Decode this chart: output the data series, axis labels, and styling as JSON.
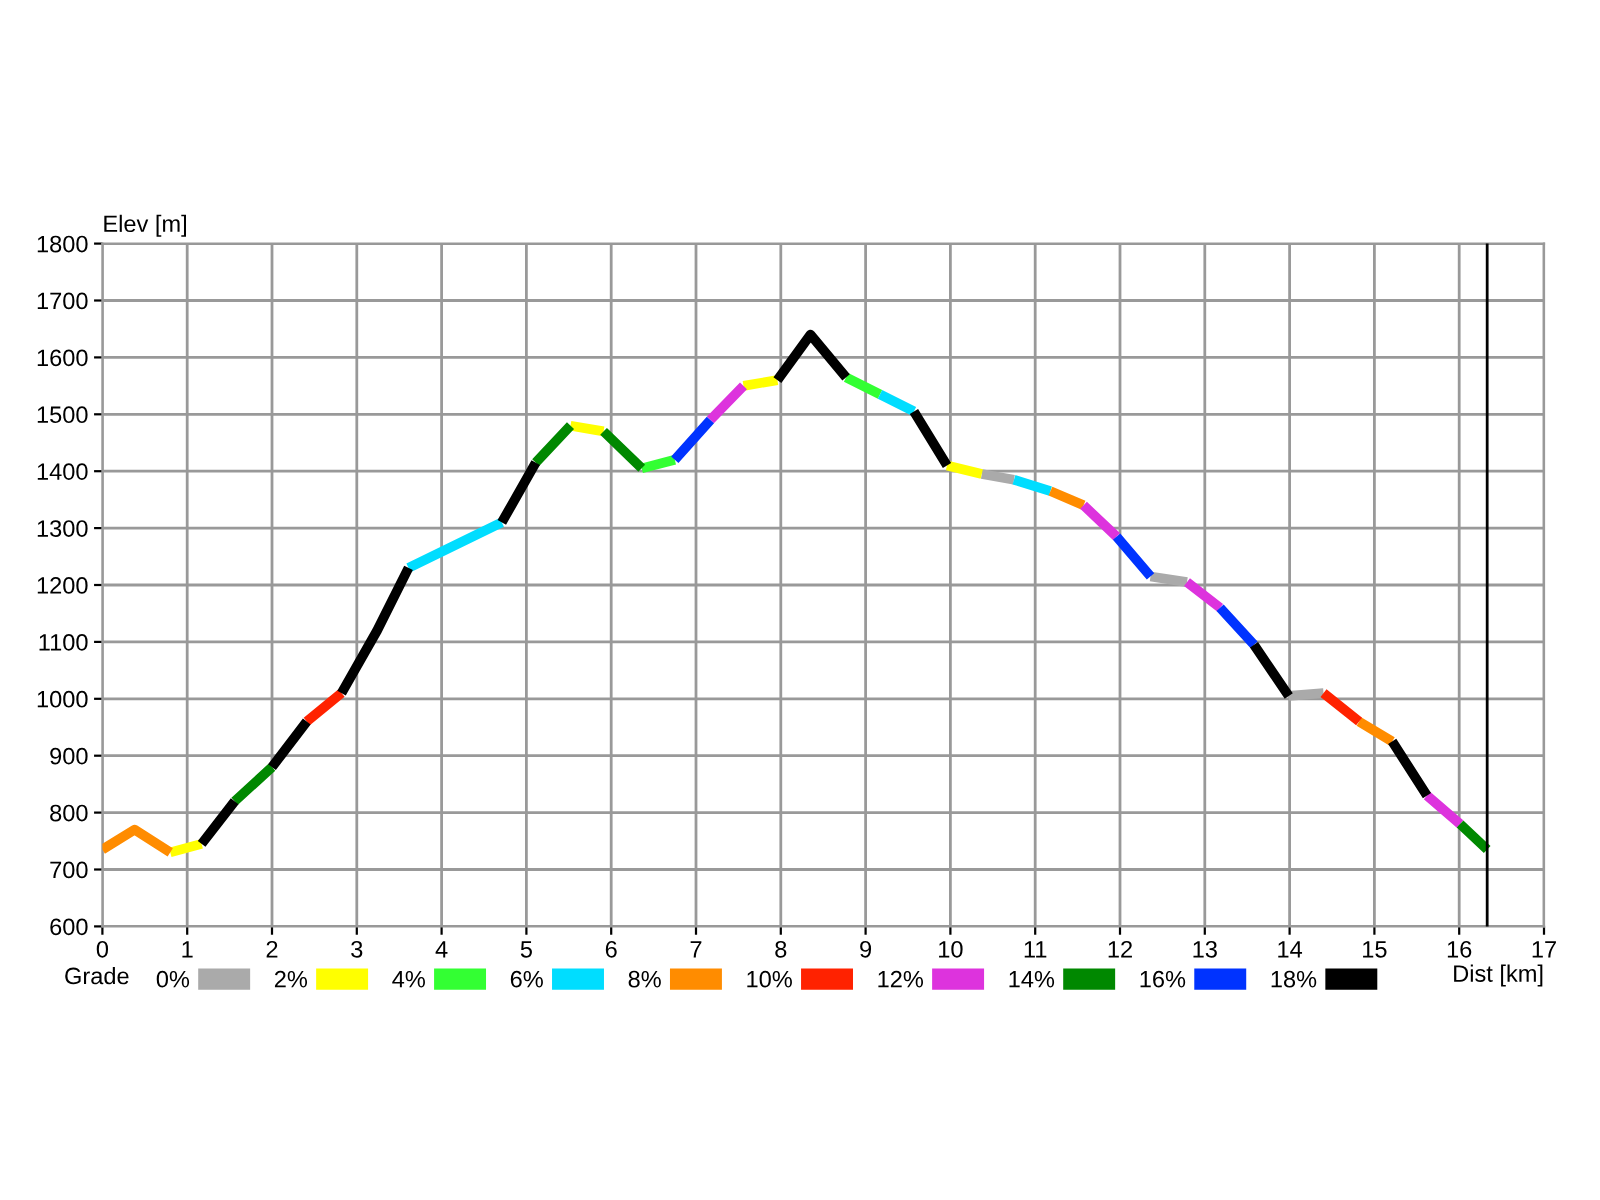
{
  "chart_data": {
    "type": "line",
    "xlabel": "Dist [km]",
    "ylabel": "Elev [m]",
    "legend_title": "Grade",
    "xlim": [
      0,
      17
    ],
    "xticks": [
      0,
      1,
      2,
      3,
      4,
      5,
      6,
      7,
      8,
      9,
      10,
      11,
      12,
      13,
      14,
      15,
      16,
      17
    ],
    "ylim": [
      600,
      1800
    ],
    "yticks": [
      600,
      700,
      800,
      900,
      1000,
      1100,
      1200,
      1300,
      1400,
      1500,
      1600,
      1700,
      1800
    ],
    "grid": true,
    "legend": "bottom",
    "marker": "none",
    "line_style": "solid",
    "ref_lines": [
      {
        "axis": "x",
        "value": 16.33,
        "color": "#000000"
      }
    ],
    "series": [
      {
        "name": "0%",
        "color": "#aaaaaa",
        "x": [
          10.37,
          10.75,
          null,
          12.36,
          12.79,
          null,
          13.99,
          14.4
        ],
        "values": [
          1395,
          1385,
          null,
          1215,
          1205,
          null,
          1005,
          1010
        ]
      },
      {
        "name": "2%",
        "color": "#ffff00",
        "x": [
          0.8,
          1.17,
          null,
          5.52,
          5.91,
          null,
          7.56,
          7.96,
          null,
          9.96,
          10.37
        ],
        "values": [
          730,
          745,
          null,
          1480,
          1470,
          null,
          1550,
          1560,
          null,
          1410,
          1395
        ]
      },
      {
        "name": "4%",
        "color": "#33ff33",
        "x": [
          6.36,
          6.75,
          null,
          8.77,
          9.17
        ],
        "values": [
          1405,
          1420,
          null,
          1565,
          1535
        ]
      },
      {
        "name": "6%",
        "color": "#00ddff",
        "x": [
          3.61,
          4.71,
          null,
          9.17,
          9.57,
          null,
          10.75,
          11.18
        ],
        "values": [
          1230,
          1310,
          null,
          1535,
          1505,
          null,
          1385,
          1365
        ]
      },
      {
        "name": "8%",
        "color": "#ff8c00",
        "x": [
          0,
          0.38,
          0.8,
          null,
          11.18,
          11.57,
          null,
          14.82,
          15.21
        ],
        "values": [
          735,
          770,
          730,
          null,
          1365,
          1340,
          null,
          960,
          925
        ]
      },
      {
        "name": "10%",
        "color": "#ff2200",
        "x": [
          2.41,
          2.82,
          null,
          14.4,
          14.82
        ],
        "values": [
          960,
          1010,
          null,
          1010,
          960
        ]
      },
      {
        "name": "12%",
        "color": "#dd33dd",
        "x": [
          7.17,
          7.56,
          null,
          11.57,
          11.96,
          null,
          12.79,
          13.18,
          null,
          15.62,
          16.01
        ],
        "values": [
          1490,
          1550,
          null,
          1340,
          1285,
          null,
          1205,
          1160,
          null,
          830,
          780
        ]
      },
      {
        "name": "14%",
        "color": "#008800",
        "x": [
          1.56,
          2.0,
          null,
          5.11,
          5.52,
          null,
          5.91,
          6.36,
          null,
          16.01,
          16.33
        ],
        "values": [
          820,
          880,
          null,
          1415,
          1480,
          null,
          1470,
          1405,
          null,
          780,
          735
        ]
      },
      {
        "name": "16%",
        "color": "#0033ff",
        "x": [
          6.75,
          7.17,
          null,
          11.96,
          12.36,
          null,
          13.18,
          13.58
        ],
        "values": [
          1420,
          1490,
          null,
          1285,
          1215,
          null,
          1160,
          1095
        ]
      },
      {
        "name": "18%",
        "color": "#000000",
        "x": [
          1.17,
          1.56,
          null,
          2.0,
          2.41,
          null,
          2.82,
          3.24,
          3.61,
          null,
          4.71,
          5.11,
          null,
          7.96,
          8.35,
          8.77,
          null,
          9.57,
          9.96,
          null,
          13.58,
          13.99,
          null,
          15.21,
          15.62
        ],
        "values": [
          745,
          820,
          null,
          880,
          960,
          null,
          1010,
          1120,
          1230,
          null,
          1310,
          1415,
          null,
          1560,
          1640,
          1565,
          null,
          1505,
          1410,
          null,
          1095,
          1005,
          null,
          925,
          830
        ]
      }
    ]
  }
}
